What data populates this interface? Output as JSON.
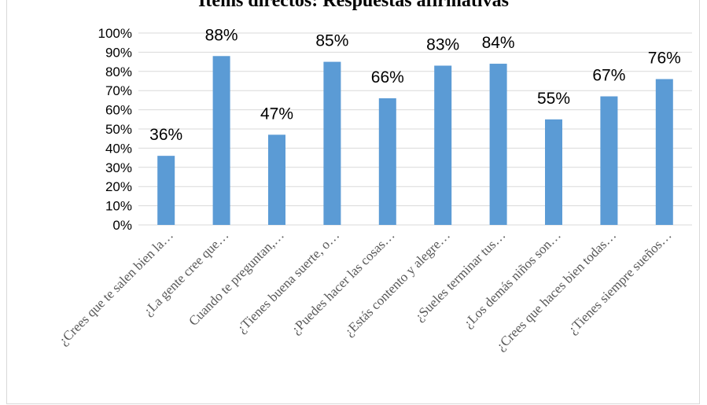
{
  "chart_data": {
    "type": "bar",
    "title": "Ítems directos: Respuestas afirmativas",
    "categories": [
      "¿Crees que te salen bien la…",
      "¿La gente cree que…",
      "Cuando te preguntan,…",
      "¿Tienes buena suerte, o…",
      "¿Puedes hacer las cosas…",
      "¿Estás contento y alegre…",
      "¿Sueles terminar tus…",
      "¿Los demás niños son…",
      "¿Crees que haces bien todas…",
      "¿Tienes siempre sueños…"
    ],
    "values": [
      36,
      88,
      47,
      85,
      66,
      83,
      84,
      55,
      67,
      76
    ],
    "data_labels": [
      "36%",
      "88%",
      "47%",
      "85%",
      "66%",
      "83%",
      "84%",
      "55%",
      "67%",
      "76%"
    ],
    "y_ticks": [
      "0%",
      "10%",
      "20%",
      "30%",
      "40%",
      "50%",
      "60%",
      "70%",
      "80%",
      "90%",
      "100%"
    ],
    "ylim": [
      0,
      100
    ],
    "grid": true,
    "bar_color": "#5b9bd5",
    "grid_color": "#d9d9d9"
  }
}
